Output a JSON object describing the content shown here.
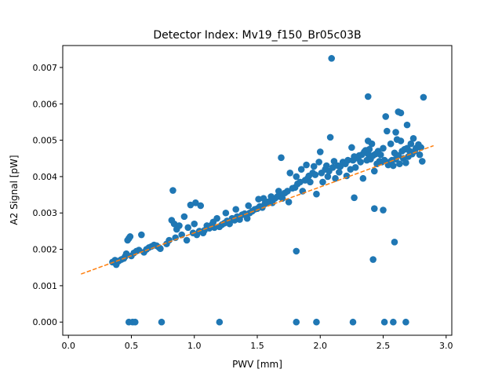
{
  "chart_data": {
    "type": "scatter",
    "title": "Detector Index: Mv19_f150_Br05c03B",
    "xlabel": "PWV [mm]",
    "ylabel": "A2 Signal [pW]",
    "xlim": [
      -0.045,
      3.045
    ],
    "ylim": [
      -0.000362,
      0.007603
    ],
    "x_ticks": [
      {
        "value": 0.0,
        "label": "0.0"
      },
      {
        "value": 0.5,
        "label": "0.5"
      },
      {
        "value": 1.0,
        "label": "1.0"
      },
      {
        "value": 1.5,
        "label": "1.5"
      },
      {
        "value": 2.0,
        "label": "2.0"
      },
      {
        "value": 2.5,
        "label": "2.5"
      },
      {
        "value": 3.0,
        "label": "3.0"
      }
    ],
    "y_ticks": [
      {
        "value": 0.0,
        "label": "0.000"
      },
      {
        "value": 0.001,
        "label": "0.001"
      },
      {
        "value": 0.002,
        "label": "0.002"
      },
      {
        "value": 0.003,
        "label": "0.003"
      },
      {
        "value": 0.004,
        "label": "0.004"
      },
      {
        "value": 0.005,
        "label": "0.005"
      },
      {
        "value": 0.006,
        "label": "0.006"
      },
      {
        "value": 0.007,
        "label": "0.007"
      }
    ],
    "grid": false,
    "series": [
      {
        "name": "measurements",
        "kind": "scatter",
        "color": "#1f77b4",
        "points": [
          [
            0.35,
            0.00165
          ],
          [
            0.37,
            0.0017
          ],
          [
            0.38,
            0.00158
          ],
          [
            0.4,
            0.00168
          ],
          [
            0.42,
            0.00172
          ],
          [
            0.44,
            0.00175
          ],
          [
            0.45,
            0.0018
          ],
          [
            0.46,
            0.00188
          ],
          [
            0.47,
            0.00225
          ],
          [
            0.48,
            0.0023
          ],
          [
            0.49,
            0.00235
          ],
          [
            0.5,
            0.00182
          ],
          [
            0.52,
            0.0019
          ],
          [
            0.54,
            0.00195
          ],
          [
            0.56,
            0.00198
          ],
          [
            0.58,
            0.0024
          ],
          [
            0.6,
            0.00192
          ],
          [
            0.62,
            0.002
          ],
          [
            0.64,
            0.00205
          ],
          [
            0.66,
            0.00208
          ],
          [
            0.68,
            0.00212
          ],
          [
            0.7,
            0.0021
          ],
          [
            0.72,
            0.00205
          ],
          [
            0.78,
            0.00215
          ],
          [
            0.8,
            0.00225
          ],
          [
            0.82,
            0.0028
          ],
          [
            0.83,
            0.00362
          ],
          [
            0.84,
            0.0027
          ],
          [
            0.85,
            0.00232
          ],
          [
            0.86,
            0.00255
          ],
          [
            0.88,
            0.00265
          ],
          [
            0.9,
            0.0024
          ],
          [
            0.92,
            0.0029
          ],
          [
            0.94,
            0.00225
          ],
          [
            0.95,
            0.0026
          ],
          [
            0.97,
            0.00322
          ],
          [
            0.99,
            0.00245
          ],
          [
            1.0,
            0.0027
          ],
          [
            1.01,
            0.00328
          ],
          [
            1.02,
            0.0024
          ],
          [
            1.04,
            0.0025
          ],
          [
            1.05,
            0.0032
          ],
          [
            1.07,
            0.00245
          ],
          [
            1.08,
            0.00252
          ],
          [
            1.1,
            0.00265
          ],
          [
            1.12,
            0.00258
          ],
          [
            1.14,
            0.00268
          ],
          [
            1.15,
            0.00275
          ],
          [
            1.16,
            0.0026
          ],
          [
            1.18,
            0.00285
          ],
          [
            1.2,
            0.00262
          ],
          [
            1.22,
            0.00268
          ],
          [
            1.24,
            0.00272
          ],
          [
            1.25,
            0.003
          ],
          [
            1.26,
            0.00278
          ],
          [
            1.28,
            0.0027
          ],
          [
            1.3,
            0.00285
          ],
          [
            1.32,
            0.0028
          ],
          [
            1.33,
            0.0031
          ],
          [
            1.34,
            0.0029
          ],
          [
            1.36,
            0.00282
          ],
          [
            1.38,
            0.00295
          ],
          [
            1.4,
            0.00298
          ],
          [
            1.42,
            0.00285
          ],
          [
            1.43,
            0.0032
          ],
          [
            1.44,
            0.003
          ],
          [
            1.46,
            0.00305
          ],
          [
            1.48,
            0.0031
          ],
          [
            1.5,
            0.00312
          ],
          [
            1.51,
            0.00338
          ],
          [
            1.52,
            0.00318
          ],
          [
            1.54,
            0.00315
          ],
          [
            1.55,
            0.0034
          ],
          [
            1.56,
            0.00325
          ],
          [
            1.58,
            0.0033
          ],
          [
            1.6,
            0.00332
          ],
          [
            1.61,
            0.00345
          ],
          [
            1.62,
            0.00328
          ],
          [
            1.64,
            0.0034
          ],
          [
            1.66,
            0.00345
          ],
          [
            1.67,
            0.0036
          ],
          [
            1.68,
            0.0035
          ],
          [
            1.69,
            0.00452
          ],
          [
            1.7,
            0.0034
          ],
          [
            1.72,
            0.00355
          ],
          [
            1.74,
            0.0036
          ],
          [
            1.75,
            0.0033
          ],
          [
            1.76,
            0.0041
          ],
          [
            1.78,
            0.00368
          ],
          [
            1.8,
            0.0037
          ],
          [
            1.81,
            0.004
          ],
          [
            1.82,
            0.0038
          ],
          [
            1.84,
            0.00385
          ],
          [
            1.85,
            0.0042
          ],
          [
            1.86,
            0.0036
          ],
          [
            1.88,
            0.0039
          ],
          [
            1.89,
            0.00432
          ],
          [
            1.9,
            0.00395
          ],
          [
            1.91,
            0.00402
          ],
          [
            1.92,
            0.00385
          ],
          [
            1.94,
            0.0041
          ],
          [
            1.95,
            0.00428
          ],
          [
            1.96,
            0.00405
          ],
          [
            1.97,
            0.00352
          ],
          [
            1.99,
            0.0044
          ],
          [
            2.0,
            0.00468
          ],
          [
            2.01,
            0.0041
          ],
          [
            2.02,
            0.00385
          ],
          [
            2.04,
            0.0042
          ],
          [
            2.05,
            0.0043
          ],
          [
            2.06,
            0.004
          ],
          [
            2.07,
            0.00415
          ],
          [
            2.08,
            0.00508
          ],
          [
            2.1,
            0.00425
          ],
          [
            2.11,
            0.00442
          ],
          [
            2.12,
            0.00395
          ],
          [
            2.14,
            0.0043
          ],
          [
            2.15,
            0.00412
          ],
          [
            2.16,
            0.00428
          ],
          [
            2.18,
            0.0044
          ],
          [
            2.2,
            0.00435
          ],
          [
            2.21,
            0.00402
          ],
          [
            2.22,
            0.00445
          ],
          [
            2.24,
            0.0042
          ],
          [
            2.25,
            0.0048
          ],
          [
            2.26,
            0.00445
          ],
          [
            2.27,
            0.00455
          ],
          [
            2.28,
            0.00425
          ],
          [
            2.3,
            0.0045
          ],
          [
            2.31,
            0.00458
          ],
          [
            2.32,
            0.0044
          ],
          [
            2.33,
            0.0046
          ],
          [
            2.34,
            0.00395
          ],
          [
            2.35,
            0.00468
          ],
          [
            2.36,
            0.00472
          ],
          [
            2.37,
            0.00445
          ],
          [
            2.38,
            0.00462
          ],
          [
            2.39,
            0.00475
          ],
          [
            2.4,
            0.00448
          ],
          [
            2.41,
            0.0049
          ],
          [
            2.42,
            0.00458
          ],
          [
            2.43,
            0.00415
          ],
          [
            2.44,
            0.00462
          ],
          [
            2.45,
            0.00435
          ],
          [
            2.46,
            0.0047
          ],
          [
            2.47,
            0.00442
          ],
          [
            2.48,
            0.0046
          ],
          [
            2.49,
            0.0044
          ],
          [
            2.5,
            0.00478
          ],
          [
            2.51,
            0.00445
          ],
          [
            2.52,
            0.00565
          ],
          [
            2.53,
            0.00525
          ],
          [
            2.54,
            0.00432
          ],
          [
            2.55,
            0.0044
          ],
          [
            2.56,
            0.0049
          ],
          [
            2.57,
            0.00445
          ],
          [
            2.58,
            0.0043
          ],
          [
            2.59,
            0.00465
          ],
          [
            2.6,
            0.00448
          ],
          [
            2.61,
            0.00502
          ],
          [
            2.62,
            0.00458
          ],
          [
            2.63,
            0.00435
          ],
          [
            2.64,
            0.00498
          ],
          [
            2.65,
            0.0047
          ],
          [
            2.66,
            0.0045
          ],
          [
            2.67,
            0.00475
          ],
          [
            2.68,
            0.00438
          ],
          [
            2.69,
            0.00478
          ],
          [
            2.7,
            0.00455
          ],
          [
            2.71,
            0.0047
          ],
          [
            2.72,
            0.0049
          ],
          [
            2.73,
            0.00462
          ],
          [
            2.74,
            0.00505
          ],
          [
            2.75,
            0.0047
          ],
          [
            2.76,
            0.00478
          ],
          [
            2.78,
            0.00488
          ],
          [
            2.79,
            0.0046
          ],
          [
            2.8,
            0.0048
          ],
          [
            2.81,
            0.00442
          ],
          [
            2.09,
            0.00725
          ],
          [
            2.38,
            0.0062
          ],
          [
            2.82,
            0.00618
          ],
          [
            2.62,
            0.00578
          ],
          [
            2.64,
            0.00575
          ],
          [
            2.69,
            0.00542
          ],
          [
            2.6,
            0.00522
          ],
          [
            2.38,
            0.00498
          ],
          [
            2.27,
            0.00342
          ],
          [
            2.43,
            0.00312
          ],
          [
            2.5,
            0.00308
          ],
          [
            2.59,
            0.0022
          ],
          [
            2.42,
            0.00172
          ],
          [
            1.81,
            0.00195
          ],
          [
            0.73,
            0.00202
          ],
          [
            0.48,
            0.0
          ],
          [
            0.51,
            0.0
          ],
          [
            0.53,
            0.0
          ],
          [
            0.74,
            0.0
          ],
          [
            1.2,
            0.0
          ],
          [
            1.81,
            0.0
          ],
          [
            1.97,
            0.0
          ],
          [
            2.26,
            0.0
          ],
          [
            2.51,
            0.0
          ],
          [
            2.58,
            0.0
          ],
          [
            2.68,
            0.0
          ]
        ]
      },
      {
        "name": "fit",
        "kind": "line",
        "style": "dashed",
        "color": "#ff7f0e",
        "points": [
          [
            0.1,
            0.00132
          ],
          [
            2.9,
            0.00485
          ]
        ]
      }
    ]
  }
}
